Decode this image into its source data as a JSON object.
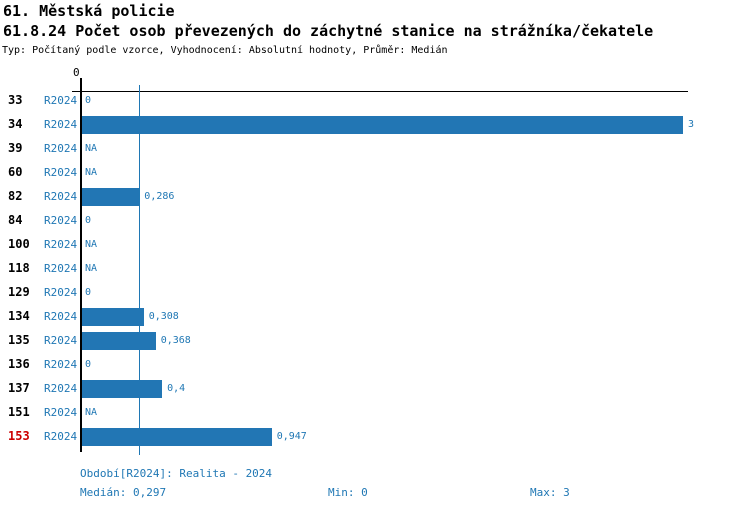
{
  "header": {
    "title": "61. Městská policie",
    "subtitle": "61.8.24 Počet osob převezených do záchytné stanice na strážníka/čekatele",
    "meta": "Typ: Počítaný podle vzorce, Vyhodnocení: Absolutní hodnoty, Průměr: Medián"
  },
  "axis": {
    "zero_tick": "0"
  },
  "colors": {
    "bar": "#2276b4",
    "blue_text": "#1f77b4",
    "highlight_category": "#cc0000"
  },
  "chart_data": {
    "type": "bar",
    "orientation": "horizontal",
    "title": "61.8.24 Počet osob převezených do záchytné stanice na strážníka/čekatele",
    "categories": [
      "33",
      "34",
      "39",
      "60",
      "82",
      "84",
      "100",
      "118",
      "129",
      "134",
      "135",
      "136",
      "137",
      "151",
      "153"
    ],
    "series": [
      {
        "name": "R2024",
        "values": [
          0,
          3,
          null,
          null,
          0.286,
          0,
          null,
          null,
          0,
          0.308,
          0.368,
          0,
          0.4,
          null,
          0.947
        ],
        "value_labels": [
          "0",
          "3",
          "NA",
          "NA",
          "0,286",
          "0",
          "NA",
          "NA",
          "0",
          "0,308",
          "0,368",
          "0",
          "0,4",
          "NA",
          "0,947"
        ]
      }
    ],
    "xlim": [
      0,
      3
    ],
    "grid": false,
    "median_reference_line": 0.297,
    "highlighted_category": "153",
    "summary": {
      "median": 0.297,
      "min": 0,
      "max": 3
    }
  },
  "rows": [
    {
      "category": "33",
      "period": "R2024",
      "value": 0,
      "label": "0",
      "highlight": false
    },
    {
      "category": "34",
      "period": "R2024",
      "value": 3,
      "label": "3",
      "highlight": false
    },
    {
      "category": "39",
      "period": "R2024",
      "value": null,
      "label": "NA",
      "highlight": false
    },
    {
      "category": "60",
      "period": "R2024",
      "value": null,
      "label": "NA",
      "highlight": false
    },
    {
      "category": "82",
      "period": "R2024",
      "value": 0.286,
      "label": "0,286",
      "highlight": false
    },
    {
      "category": "84",
      "period": "R2024",
      "value": 0,
      "label": "0",
      "highlight": false
    },
    {
      "category": "100",
      "period": "R2024",
      "value": null,
      "label": "NA",
      "highlight": false
    },
    {
      "category": "118",
      "period": "R2024",
      "value": null,
      "label": "NA",
      "highlight": false
    },
    {
      "category": "129",
      "period": "R2024",
      "value": 0,
      "label": "0",
      "highlight": false
    },
    {
      "category": "134",
      "period": "R2024",
      "value": 0.308,
      "label": "0,308",
      "highlight": false
    },
    {
      "category": "135",
      "period": "R2024",
      "value": 0.368,
      "label": "0,368",
      "highlight": false
    },
    {
      "category": "136",
      "period": "R2024",
      "value": 0,
      "label": "0",
      "highlight": false
    },
    {
      "category": "137",
      "period": "R2024",
      "value": 0.4,
      "label": "0,4",
      "highlight": false
    },
    {
      "category": "151",
      "period": "R2024",
      "value": null,
      "label": "NA",
      "highlight": false
    },
    {
      "category": "153",
      "period": "R2024",
      "value": 0.947,
      "label": "0,947",
      "highlight": true
    }
  ],
  "footer": {
    "period_line": "Období[R2024]: Realita - 2024",
    "median": "Medián: 0,297",
    "min": "Min: 0",
    "max": "Max: 3"
  }
}
